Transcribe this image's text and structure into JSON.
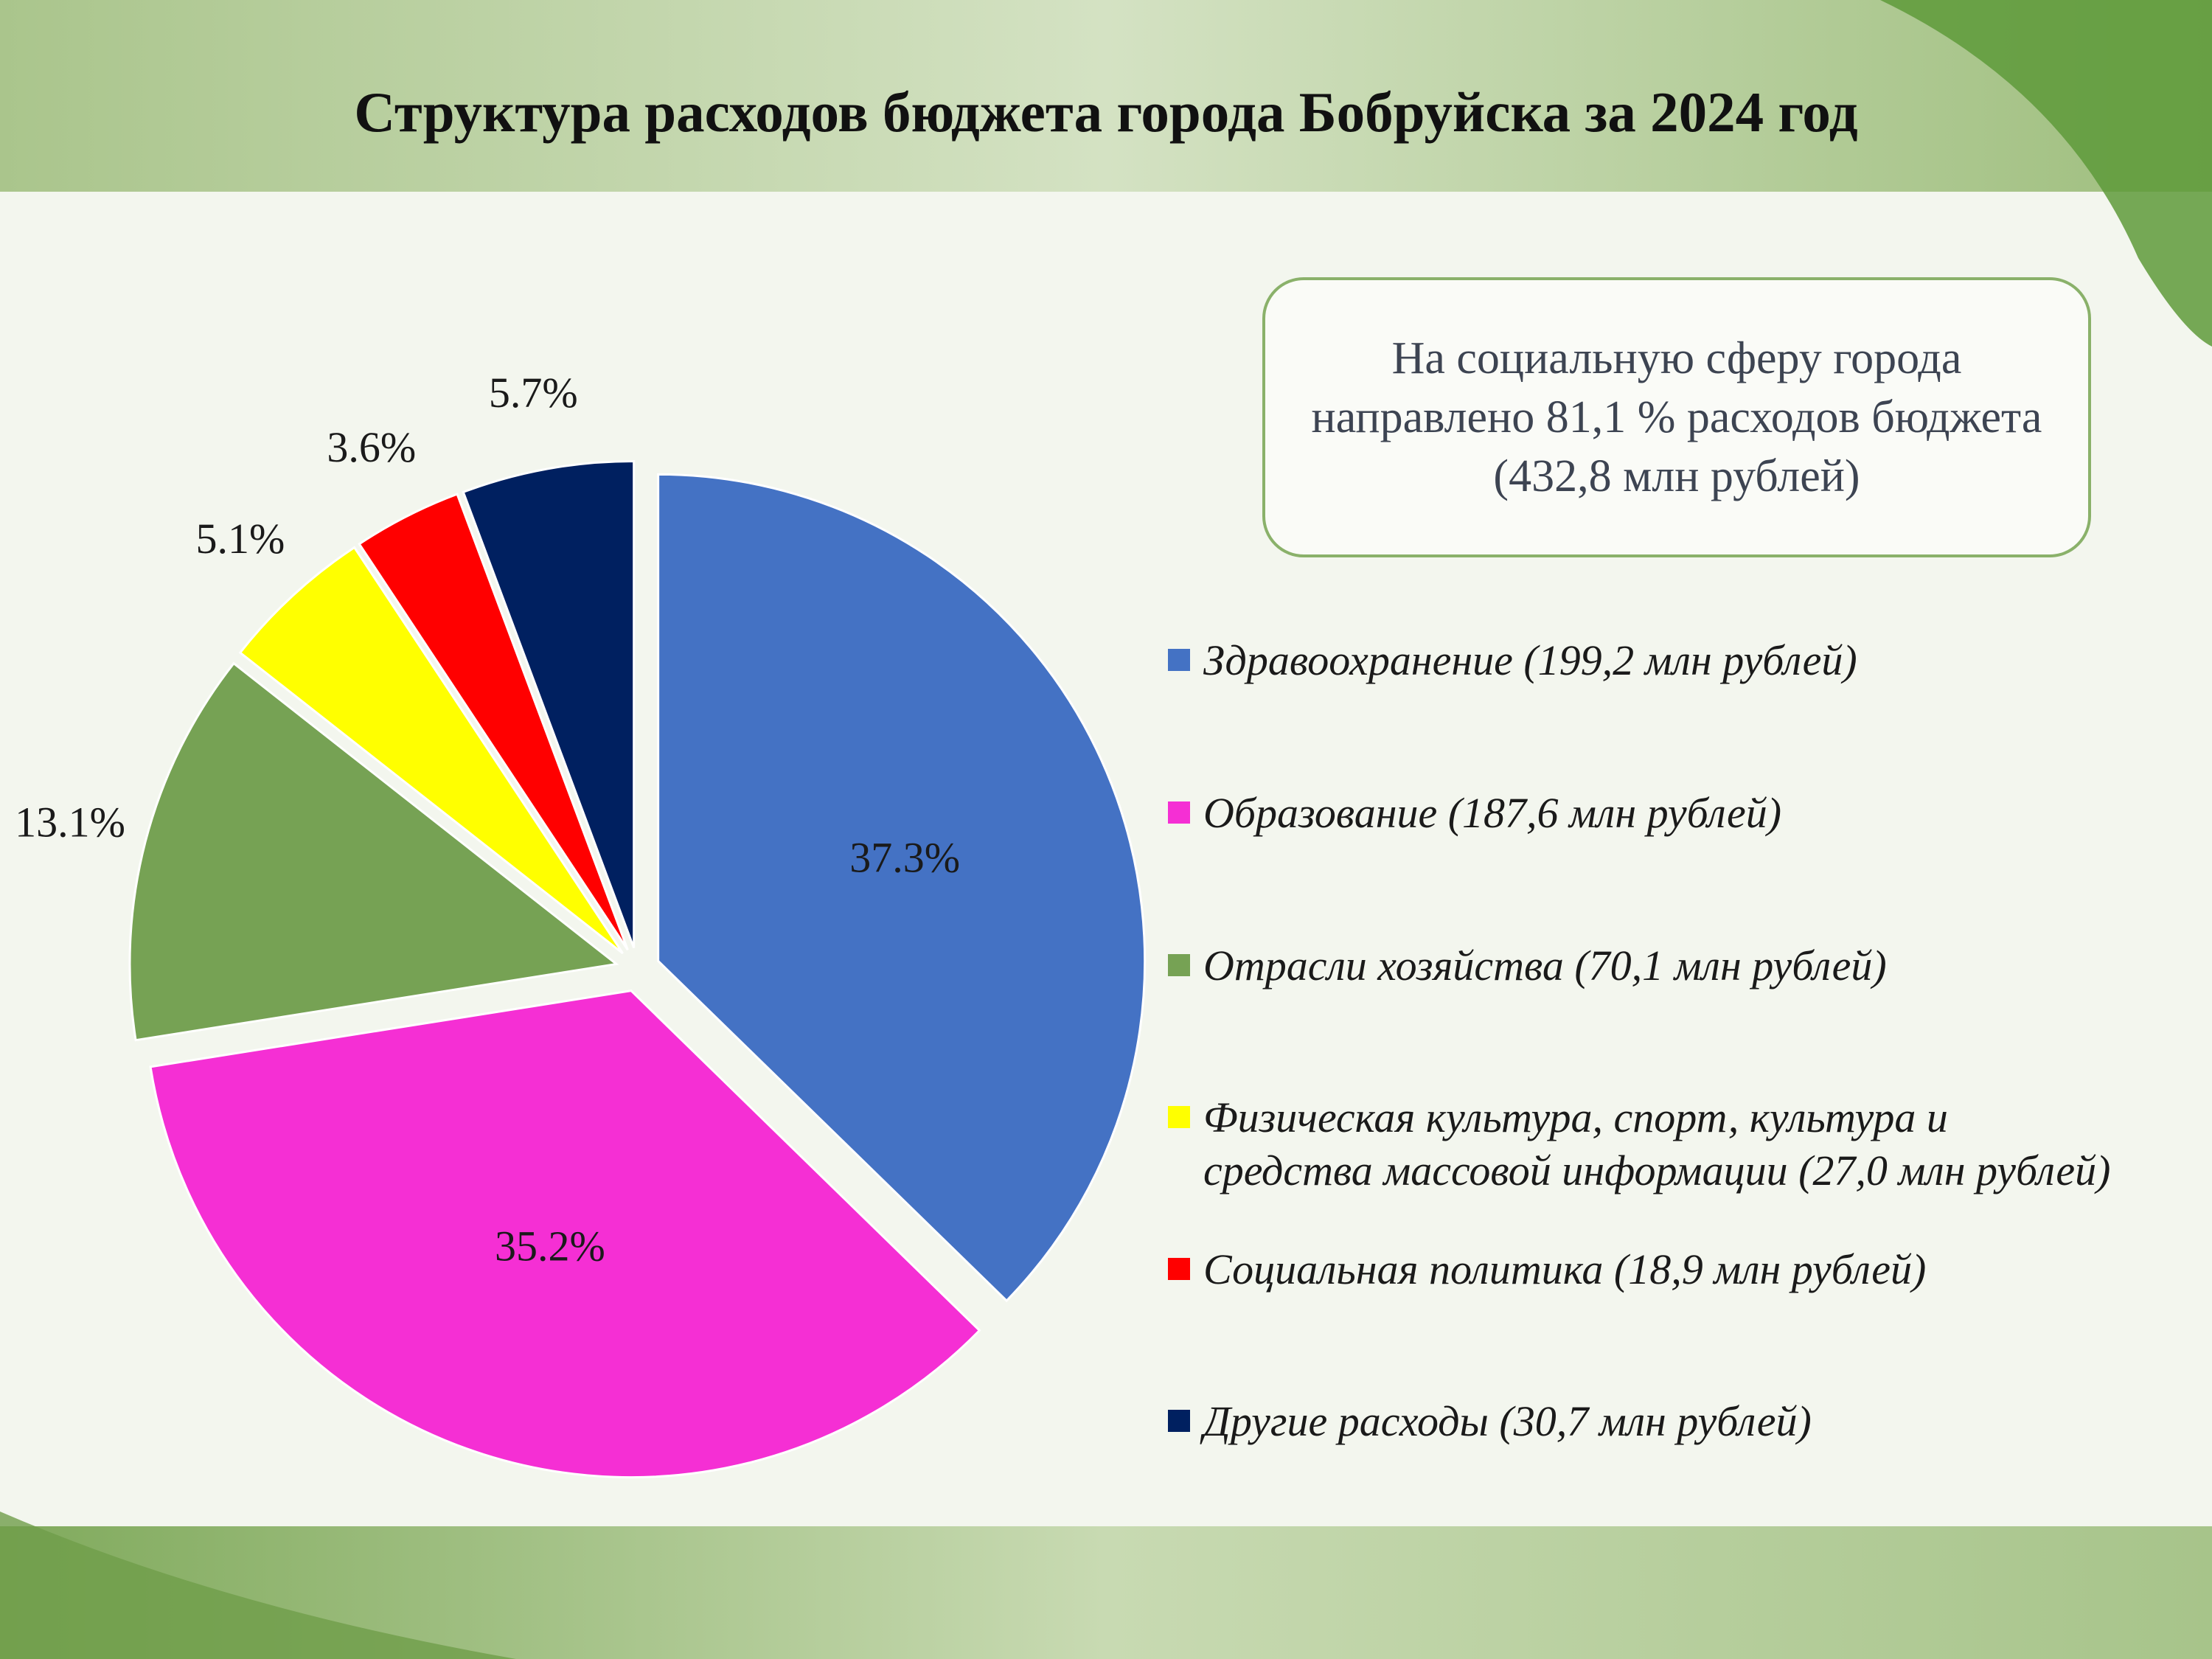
{
  "title": "Структура расходов бюджета города Бобруйска за 2024 год",
  "note": "На социальную сферу города направлено 81,1 % расходов бюджета (432,8 млн рублей)",
  "legend": [
    {
      "label": "Здравоохранение (199,2 млн рублей)"
    },
    {
      "label": "Образование (187,6 млн рублей)"
    },
    {
      "label": "Отрасли хозяйства (70,1 млн рублей)"
    },
    {
      "label": "Физическая культура, спорт, культура и\nсредства массовой информации (27,0 млн рублей)"
    },
    {
      "label": "Социальная политика (18,9 млн рублей)"
    },
    {
      "label": "Другие расходы (30,7 млн рублей)"
    }
  ],
  "chart_data": {
    "type": "pie",
    "categories": [
      "Здравоохранение (199,2 млн рублей)",
      "Образование (187,6 млн рублей)",
      "Отрасли хозяйства (70,1 млн рублей)",
      "Физическая культура, спорт, культура и средства массовой информации (27,0 млн рублей)",
      "Социальная политика (18,9 млн рублей)",
      "Другие расходы (30,7 млн рублей)"
    ],
    "values": [
      37.3,
      35.2,
      13.1,
      5.1,
      3.6,
      5.7
    ],
    "amounts_mln_rub": [
      199.2,
      187.6,
      70.1,
      27.0,
      18.9,
      30.7
    ],
    "labels": [
      "37.3%",
      "35.2%",
      "13.1%",
      "5.1%",
      "3.6%",
      "5.7%"
    ],
    "colors": [
      "#4472c4",
      "#f52fd4",
      "#76a254",
      "#ffff00",
      "#ff0000",
      "#002060"
    ],
    "label_position": [
      "inside",
      "inside",
      "outside",
      "outside",
      "outside",
      "outside"
    ],
    "title": "Структура расходов бюджета города Бобруйска за 2024 год",
    "legend_position": "right"
  }
}
